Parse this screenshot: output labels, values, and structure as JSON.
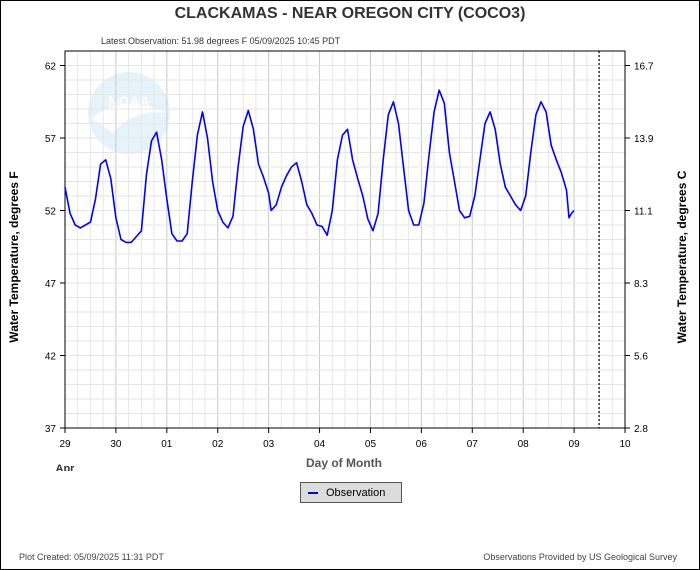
{
  "header": {
    "title": "CLACKAMAS - NEAR OREGON CITY  (COCO3)",
    "latest_observation": "Latest Observation: 51.98 degrees F 05/09/2025 10:45 PDT"
  },
  "footer": {
    "plot_created": "Plot Created: 05/09/2025 11:31 PDT",
    "credit": "Observations Provided by US Geological Survey"
  },
  "watermark": {
    "text": "NOAA",
    "icon": "noaa-logo"
  },
  "legend": {
    "label": "Observation",
    "color": "#0000ff"
  },
  "chart_data": {
    "type": "line",
    "title": "CLACKAMAS - NEAR OREGON CITY  (COCO3)",
    "xlabel": "Day of Month",
    "x_sublabel": "Apr",
    "ylabel_left": "Water Temperature, degrees F",
    "ylabel_right": "Water Temperature, degrees C",
    "x_tick_labels": [
      "29",
      "30",
      "01",
      "02",
      "03",
      "04",
      "05",
      "06",
      "07",
      "08",
      "09",
      "10"
    ],
    "xlim": [
      0,
      11
    ],
    "ylim": [
      37,
      63
    ],
    "y_ticks_left": [
      37,
      42,
      47,
      52,
      57,
      62
    ],
    "y_ticks_right": [
      "2.8",
      "5.6",
      "8.3",
      "11.1",
      "13.9",
      "16.7"
    ],
    "grid": true,
    "latest_marker_day": 10.49,
    "series": [
      {
        "name": "Observation",
        "color": "#0000ff",
        "points": [
          [
            0.0,
            53.6
          ],
          [
            0.1,
            51.8
          ],
          [
            0.2,
            51.0
          ],
          [
            0.3,
            50.8
          ],
          [
            0.4,
            51.0
          ],
          [
            0.5,
            51.2
          ],
          [
            0.6,
            52.8
          ],
          [
            0.7,
            55.2
          ],
          [
            0.8,
            55.5
          ],
          [
            0.9,
            54.2
          ],
          [
            1.0,
            51.5
          ],
          [
            1.1,
            50.0
          ],
          [
            1.2,
            49.8
          ],
          [
            1.3,
            49.8
          ],
          [
            1.4,
            50.2
          ],
          [
            1.5,
            50.6
          ],
          [
            1.6,
            54.5
          ],
          [
            1.7,
            56.8
          ],
          [
            1.8,
            57.4
          ],
          [
            1.9,
            55.5
          ],
          [
            2.0,
            52.8
          ],
          [
            2.1,
            50.4
          ],
          [
            2.2,
            49.9
          ],
          [
            2.3,
            49.9
          ],
          [
            2.4,
            50.4
          ],
          [
            2.5,
            54.0
          ],
          [
            2.6,
            57.2
          ],
          [
            2.7,
            58.8
          ],
          [
            2.8,
            57.0
          ],
          [
            2.9,
            54.0
          ],
          [
            3.0,
            52.0
          ],
          [
            3.1,
            51.2
          ],
          [
            3.2,
            50.8
          ],
          [
            3.3,
            51.6
          ],
          [
            3.4,
            55.0
          ],
          [
            3.5,
            57.8
          ],
          [
            3.6,
            58.9
          ],
          [
            3.7,
            57.6
          ],
          [
            3.8,
            55.2
          ],
          [
            3.9,
            54.3
          ],
          [
            4.0,
            53.2
          ],
          [
            4.05,
            52.0
          ],
          [
            4.15,
            52.4
          ],
          [
            4.25,
            53.6
          ],
          [
            4.35,
            54.4
          ],
          [
            4.45,
            55.0
          ],
          [
            4.55,
            55.3
          ],
          [
            4.65,
            54.0
          ],
          [
            4.75,
            52.4
          ],
          [
            4.85,
            51.8
          ],
          [
            4.95,
            51.0
          ],
          [
            5.05,
            50.9
          ],
          [
            5.15,
            50.3
          ],
          [
            5.25,
            52.0
          ],
          [
            5.35,
            55.5
          ],
          [
            5.45,
            57.2
          ],
          [
            5.55,
            57.6
          ],
          [
            5.65,
            55.5
          ],
          [
            5.75,
            54.2
          ],
          [
            5.85,
            53.0
          ],
          [
            5.95,
            51.4
          ],
          [
            6.05,
            50.6
          ],
          [
            6.15,
            51.8
          ],
          [
            6.25,
            55.5
          ],
          [
            6.35,
            58.6
          ],
          [
            6.45,
            59.5
          ],
          [
            6.55,
            58.0
          ],
          [
            6.65,
            55.0
          ],
          [
            6.75,
            52.0
          ],
          [
            6.85,
            51.0
          ],
          [
            6.95,
            51.0
          ],
          [
            7.05,
            52.5
          ],
          [
            7.15,
            55.8
          ],
          [
            7.25,
            58.8
          ],
          [
            7.35,
            60.3
          ],
          [
            7.45,
            59.4
          ],
          [
            7.55,
            56.0
          ],
          [
            7.65,
            54.0
          ],
          [
            7.75,
            52.0
          ],
          [
            7.85,
            51.5
          ],
          [
            7.95,
            51.6
          ],
          [
            8.05,
            53.0
          ],
          [
            8.15,
            55.5
          ],
          [
            8.25,
            58.0
          ],
          [
            8.35,
            58.8
          ],
          [
            8.45,
            57.6
          ],
          [
            8.55,
            55.2
          ],
          [
            8.65,
            53.6
          ],
          [
            8.75,
            53.0
          ],
          [
            8.85,
            52.4
          ],
          [
            8.95,
            52.0
          ],
          [
            9.05,
            53.0
          ],
          [
            9.15,
            56.0
          ],
          [
            9.25,
            58.6
          ],
          [
            9.35,
            59.5
          ],
          [
            9.45,
            58.8
          ],
          [
            9.55,
            56.5
          ],
          [
            9.65,
            55.5
          ],
          [
            9.75,
            54.6
          ],
          [
            9.85,
            53.4
          ],
          [
            9.9,
            51.5
          ],
          [
            9.95,
            51.8
          ],
          [
            10.0,
            52.0
          ]
        ]
      }
    ]
  }
}
